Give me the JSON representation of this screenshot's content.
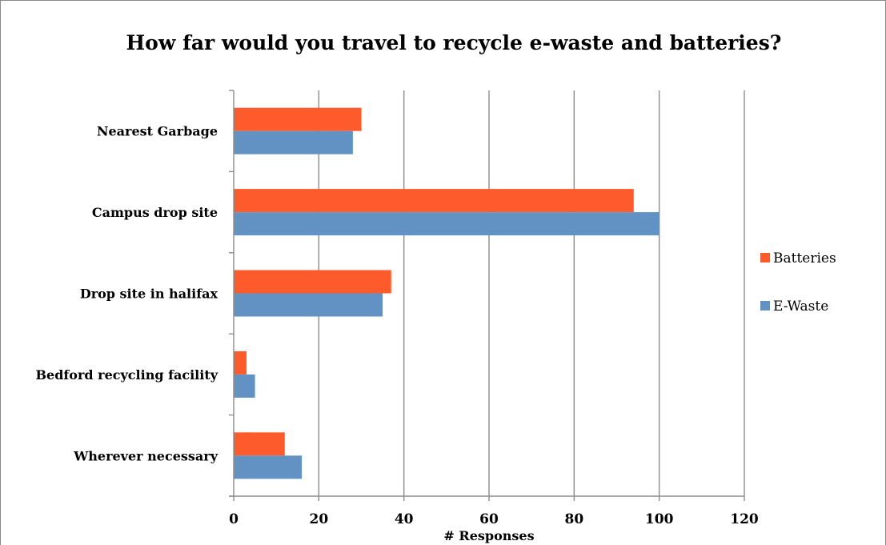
{
  "chart_data": {
    "type": "bar",
    "orientation": "horizontal",
    "title": "How far would you travel to recycle e-waste and batteries?",
    "xlabel": "# Responses",
    "ylabel": "",
    "categories": [
      "Nearest Garbage",
      "Campus drop site",
      "Drop site in halifax",
      "Bedford recycling facility",
      "Wherever necessary"
    ],
    "series": [
      {
        "name": "Batteries",
        "color": "#fd5b2c",
        "values": [
          30,
          94,
          37,
          3,
          12
        ]
      },
      {
        "name": "E-Waste",
        "color": "#6292c4",
        "values": [
          28,
          100,
          35,
          5,
          16
        ]
      }
    ],
    "xlim": [
      0,
      120
    ],
    "ticks": [
      0,
      20,
      40,
      60,
      80,
      100,
      120
    ],
    "tick_labels": [
      "0",
      "20",
      "40",
      "60",
      "80",
      "100",
      "120"
    ],
    "grid": true,
    "legend_position": "right"
  }
}
